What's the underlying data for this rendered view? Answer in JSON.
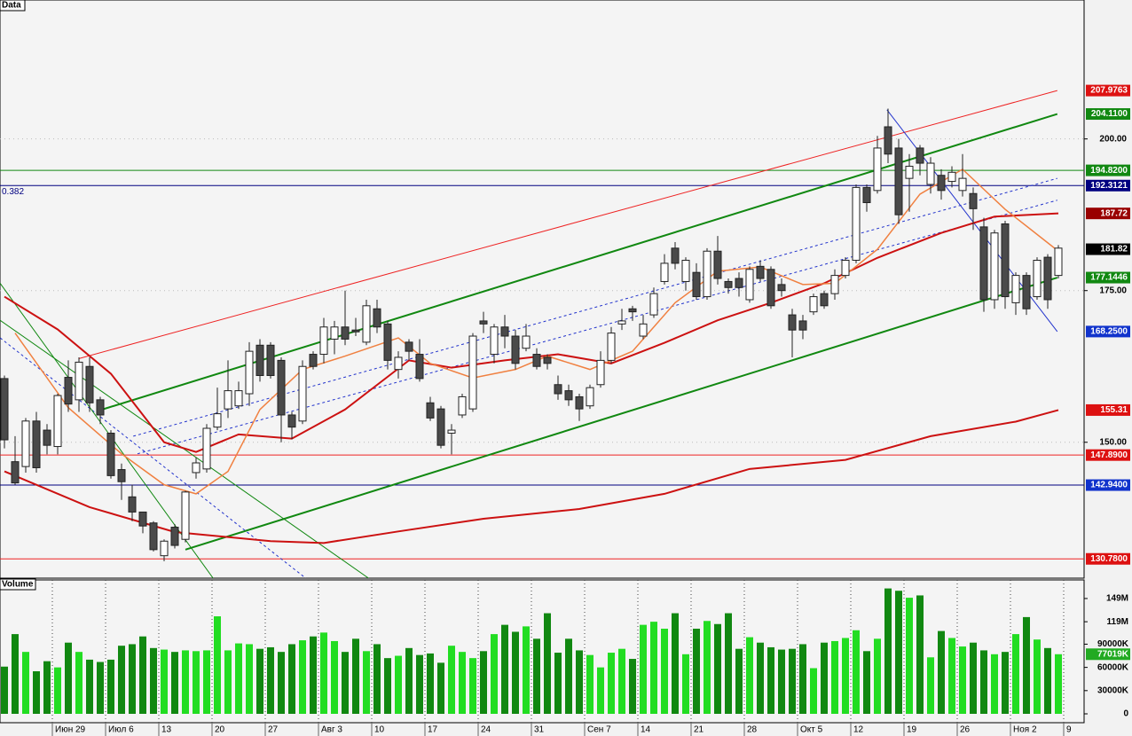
{
  "chart_data": {
    "type": "candlestick",
    "title": "Data",
    "volume_title": "Volume",
    "open": [
      160.5,
      146.8,
      146,
      153.5,
      152,
      149.3,
      160.7,
      157,
      162.5,
      157,
      151.5,
      145.5,
      141,
      138.5,
      136.7,
      131.3,
      136,
      134,
      145,
      145.6,
      152.5,
      155.5,
      156,
      158,
      166,
      166,
      163.5,
      154.5,
      153.5,
      164.5,
      164.5,
      167,
      169,
      168.5,
      166.5,
      172,
      169.5,
      162,
      166.5,
      164.5,
      156.5,
      155.5,
      151.5,
      154.5,
      155.5,
      170,
      164.5,
      169,
      167.5,
      165.5,
      164.5,
      164,
      159.5,
      158.5,
      157.5,
      156,
      159.5,
      163.5,
      169.5,
      172,
      167.5,
      171,
      176.5,
      182,
      176.5,
      178,
      174,
      181.5,
      176.5,
      177,
      173.5,
      179,
      178.5,
      176,
      171,
      170,
      171.5,
      174.5,
      174.5,
      177.5,
      180,
      192,
      191.5,
      202,
      198.5,
      193.5,
      198.5,
      192.5,
      194,
      193,
      191.5,
      191,
      185.5,
      173.5,
      186,
      173,
      177.5,
      174,
      180.5,
      177.5
    ],
    "high": [
      161,
      151,
      154,
      155,
      153,
      158,
      163.5,
      164,
      164,
      157.5,
      152,
      146.5,
      143,
      138.5,
      137,
      134,
      136.5,
      142,
      147.5,
      153,
      159,
      163.5,
      160,
      166.5,
      167,
      166.5,
      164,
      155,
      163.5,
      165,
      170.5,
      170,
      175,
      170.5,
      173.5,
      173.5,
      170,
      165,
      167,
      167,
      157.5,
      156,
      153,
      158,
      168,
      171.5,
      169.5,
      171,
      168.5,
      169.5,
      165.5,
      164.5,
      161,
      159.5,
      158,
      159.5,
      165,
      169,
      172,
      172.5,
      171,
      175.5,
      181,
      183,
      180.5,
      179.5,
      182,
      184,
      177,
      178,
      179,
      180,
      179,
      177,
      172,
      171,
      174.5,
      175,
      178.5,
      180.5,
      192.5,
      192.5,
      200.5,
      205,
      200,
      197.5,
      199,
      197,
      195,
      195.5,
      197.5,
      192,
      187,
      185,
      186.5,
      178,
      178,
      180.5,
      181,
      182.5
    ],
    "low": [
      149,
      143,
      145,
      145,
      148,
      148,
      155,
      155,
      155,
      153,
      144,
      140.5,
      137,
      135,
      132,
      130.4,
      132.5,
      133.5,
      144,
      145,
      152,
      154,
      155.5,
      156,
      160,
      160.5,
      150,
      150.5,
      153,
      162,
      163,
      164.5,
      166,
      167.5,
      166,
      168,
      162,
      160.5,
      163.5,
      160,
      153.5,
      149,
      148,
      154,
      155,
      168,
      163,
      165.5,
      162,
      165,
      162,
      162,
      157,
      156,
      153.5,
      155.5,
      159,
      163,
      168.5,
      170,
      167,
      170.5,
      176,
      178.5,
      175,
      173.5,
      173.5,
      176,
      174.5,
      174,
      173,
      176.5,
      172,
      174,
      164,
      167,
      171,
      172,
      173.5,
      177,
      179.5,
      188,
      191,
      196,
      186,
      188,
      194,
      191,
      190,
      192,
      190.5,
      185,
      171.5,
      172,
      172,
      171,
      171,
      173.5,
      172,
      177
    ],
    "close": [
      150.4,
      143.3,
      153.5,
      145.8,
      149.5,
      157.7,
      156.3,
      163.2,
      156.5,
      154.5,
      144.5,
      143.5,
      138.5,
      136.2,
      132.3,
      133.7,
      133,
      141.8,
      146.6,
      152.3,
      154.7,
      158.5,
      158.5,
      165,
      161,
      161,
      154.5,
      152.5,
      162.5,
      162.5,
      169,
      169,
      167,
      168.2,
      172.5,
      169,
      163.5,
      164,
      165,
      160.5,
      154,
      149.5,
      152,
      157.5,
      167.5,
      169.5,
      169,
      167.5,
      163,
      167.5,
      162.5,
      163,
      158,
      157,
      155.5,
      159,
      163.5,
      168,
      170,
      171.5,
      169.5,
      174.5,
      179.5,
      179.5,
      180,
      174,
      181.5,
      177,
      175.5,
      175.5,
      178.5,
      177,
      172.5,
      175,
      168.5,
      168.5,
      174,
      172.5,
      177.5,
      180,
      192,
      189.5,
      198.5,
      197.5,
      187.5,
      195.5,
      196,
      196,
      191.5,
      194.5,
      193.5,
      188.5,
      173.5,
      184.5,
      174,
      177.5,
      172,
      180,
      173.5,
      182
    ],
    "ylim": [
      127.6,
      222.9
    ],
    "yticks": [
      {
        "value": 200,
        "label": "200.00"
      },
      {
        "value": 175,
        "label": "175.00"
      },
      {
        "value": 150,
        "label": "150.00"
      }
    ],
    "xticks": [
      "Июн 29",
      "Июл 6",
      "13",
      "20",
      "27",
      "Авг 3",
      "10",
      "17",
      "24",
      "31",
      "Сен 7",
      "14",
      "21",
      "28",
      "Окт 5",
      "12",
      "19",
      "26",
      "Ноя 2",
      "9"
    ],
    "up_color": "#ffffff",
    "down_color": "#4a4a4a",
    "averages": [
      {
        "color": "#cc1111",
        "x": [
          0,
          8,
          16,
          25,
          30,
          37,
          45,
          54,
          62,
          70,
          79,
          87,
          95,
          99
        ],
        "values": [
          145.2,
          139.3,
          135.2,
          133.7,
          133.4,
          135.3,
          137.4,
          139,
          141.5,
          145.6,
          147.1,
          151,
          153.4,
          155.31
        ]
      },
      {
        "color": "#cc1111",
        "x": [
          0,
          5,
          10,
          15,
          18,
          22,
          27,
          32,
          38,
          42,
          47,
          52,
          57,
          62,
          67,
          72,
          77,
          82,
          88,
          93,
          99
        ],
        "values": [
          174,
          168.6,
          161.3,
          150,
          148.4,
          151.3,
          150.6,
          155.4,
          163.5,
          162.3,
          163.5,
          164.5,
          163,
          166.4,
          170.1,
          173,
          176.2,
          180.4,
          184.5,
          187.2,
          187.72
        ]
      },
      {
        "color": "#f08040",
        "x": [
          1,
          6,
          11,
          15,
          18,
          21,
          24,
          28,
          32,
          37,
          40,
          44,
          48,
          51,
          55,
          59,
          63,
          67,
          71,
          75,
          78,
          82,
          86,
          90,
          94,
          99
        ],
        "values": [
          168,
          155.7,
          148.1,
          143,
          141.5,
          145.2,
          155.4,
          162,
          164.2,
          167.2,
          163,
          160.6,
          162,
          164.2,
          162,
          165,
          173,
          178.2,
          178.9,
          176,
          176.2,
          181.8,
          190.9,
          195,
          188.4,
          181.5
        ]
      }
    ],
    "trend_lines": [
      {
        "color": "#ee2222",
        "x": [
          7,
          98.9
        ],
        "values": [
          163.8,
          207.9763
        ]
      },
      {
        "color": "#118811",
        "x": [
          9,
          98.9
        ],
        "values": [
          155.3,
          204.11
        ]
      },
      {
        "color": "#118811",
        "x": [
          17,
          98.9
        ],
        "values": [
          132.3,
          177.1446
        ]
      },
      {
        "color": "#2233cc",
        "dashed": true,
        "x": [
          12.1,
          98.9
        ],
        "values": [
          151,
          193.5
        ]
      },
      {
        "color": "#2233cc",
        "dashed": true,
        "x": [
          12.5,
          98.9
        ],
        "values": [
          148.1,
          189.9
        ]
      },
      {
        "color": "#2233cc",
        "dashed": true,
        "x": [
          -0.4,
          28.3
        ],
        "values": [
          167.2,
          127.6
        ]
      },
      {
        "color": "#118811",
        "x": [
          -0.4,
          19.6
        ],
        "values": [
          176.2,
          127.6
        ]
      },
      {
        "color": "#118811",
        "x": [
          -0.4,
          34.2
        ],
        "values": [
          170.1,
          127.6
        ]
      },
      {
        "color": "#2233cc",
        "x": [
          82.9,
          98.9
        ],
        "values": [
          204.8,
          168.25
        ]
      }
    ],
    "levels": [
      {
        "value": 194.82,
        "color": "#118811"
      },
      {
        "value": 192.3121,
        "color": "#000080",
        "label": "0.382"
      },
      {
        "value": 147.89,
        "color": "#ee2222"
      },
      {
        "value": 142.94,
        "color": "#000080"
      },
      {
        "value": 130.78,
        "color": "#ee2222"
      }
    ],
    "price_labels": [
      {
        "value": 207.9763,
        "label": "207.9763",
        "color": "#dd1111"
      },
      {
        "value": 204.11,
        "label": "204.1100",
        "color": "#118811"
      },
      {
        "value": 194.82,
        "label": "194.8200",
        "color": "#118811"
      },
      {
        "value": 192.3121,
        "label": "192.3121",
        "color": "#000080"
      },
      {
        "value": 187.72,
        "label": "187.72",
        "color": "#990000"
      },
      {
        "value": 181.82,
        "label": "181.82",
        "color": "#000000"
      },
      {
        "value": 177.1446,
        "label": "177.1446",
        "color": "#118811"
      },
      {
        "value": 168.25,
        "label": "168.2500",
        "color": "#1133cc"
      },
      {
        "value": 155.31,
        "label": "155.31",
        "color": "#dd1111"
      },
      {
        "value": 147.89,
        "label": "147.8900",
        "color": "#dd1111"
      },
      {
        "value": 142.94,
        "label": "142.9400",
        "color": "#1133cc"
      },
      {
        "value": 130.78,
        "label": "130.7800",
        "color": "#dd1111"
      }
    ],
    "volume": {
      "values": [
        61,
        103,
        80,
        55,
        68,
        60,
        92,
        80,
        70,
        67,
        70,
        88,
        90,
        100,
        85,
        83,
        80,
        82,
        81,
        82,
        126,
        82,
        91,
        90,
        84,
        86,
        80,
        90,
        95,
        100,
        105,
        94,
        80,
        97,
        81,
        90,
        72,
        75,
        85,
        76,
        78,
        66,
        88,
        80,
        72,
        81,
        103,
        115,
        106,
        113,
        97,
        130,
        79,
        97,
        82,
        76,
        60,
        79,
        84,
        71,
        115,
        119,
        110,
        130,
        77,
        110,
        120,
        116,
        130,
        84,
        99,
        92,
        86,
        83,
        84,
        90,
        59,
        92,
        94,
        98,
        108,
        81,
        97,
        162,
        159,
        150,
        153,
        73,
        107,
        98,
        87,
        92,
        82,
        77,
        80,
        103,
        125,
        96,
        85,
        77.019
      ],
      "ylim": [
        0,
        173
      ],
      "yticks": [
        {
          "value": 149,
          "label": "149M"
        },
        {
          "value": 119,
          "label": "119M"
        },
        {
          "value": 90,
          "label": "90000K"
        },
        {
          "value": 60,
          "label": "60000K"
        },
        {
          "value": 30,
          "label": "30000K"
        },
        0
      ],
      "last": {
        "value": 77.019,
        "label": "77019K"
      },
      "up_color": "#22dd22",
      "down_color": "#118811",
      "last_color": "#22aa22"
    }
  }
}
